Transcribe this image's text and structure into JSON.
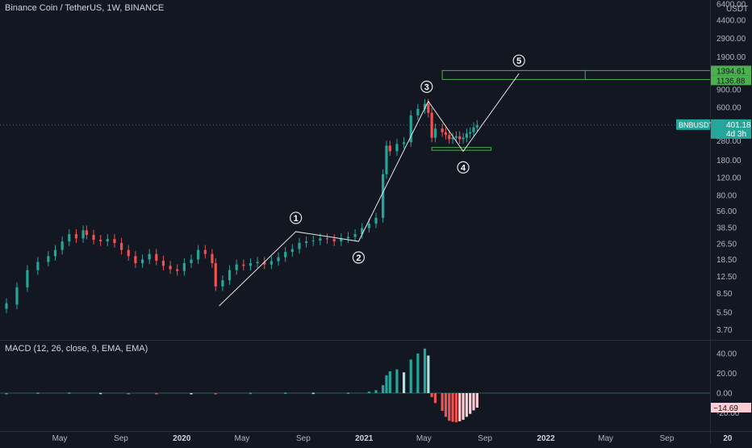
{
  "header": {
    "title": "Binance Coin / TetherUS, 1W, BINANCE",
    "currency": "USDT"
  },
  "macd_title": "MACD (12, 26, close, 9, EMA, EMA)",
  "colors": {
    "background": "#131722",
    "up": "#26a69a",
    "down": "#ef5350",
    "wave": "#e6e6e6",
    "target": "#4caf50",
    "hist_up_light": "#b2dfdb",
    "hist_down_light": "#ffcdd2"
  },
  "chart_data": [
    {
      "type": "candlestick",
      "symbol": "BNBUSDT",
      "log_scale": true,
      "y_ticks": [
        "6400.00",
        "4400.00",
        "2900.00",
        "1900.00",
        "900.00",
        "600.00",
        "280.00",
        "180.00",
        "120.00",
        "80.00",
        "56.00",
        "38.50",
        "26.50",
        "18.50",
        "12.50",
        "8.50",
        "5.50",
        "3.70"
      ],
      "x_ticks": [
        "May",
        "Sep",
        "2020",
        "May",
        "Sep",
        "2021",
        "May",
        "Sep",
        "2022",
        "May",
        "Sep",
        "20"
      ],
      "ylim": [
        3,
        7000
      ],
      "price_line": {
        "symbol": "BNBUSDT",
        "value": "401.18",
        "countdown": "4d 3h",
        "price": 401.18
      },
      "target_zone": {
        "labels": [
          "1394.61",
          "1136.88"
        ],
        "low": 1136.88,
        "high": 1394.61
      },
      "support_zone": {
        "low": 225,
        "high": 240
      },
      "wave_labels": [
        "1",
        "2",
        "3",
        "4",
        "5"
      ],
      "wave_points": [
        {
          "date": "2020-03-16",
          "price": 6.4
        },
        {
          "date": "2020-08-17",
          "price": 35
        },
        {
          "date": "2020-12-21",
          "price": 28
        },
        {
          "date": "2021-05-10",
          "price": 690
        },
        {
          "date": "2021-07-19",
          "price": 220
        },
        {
          "date": "2021-11-08",
          "price": 1300
        }
      ],
      "candles": [
        {
          "d": "2019-01-14",
          "o": 6.0,
          "c": 6.8
        },
        {
          "d": "2019-02-04",
          "o": 6.6,
          "c": 9.8
        },
        {
          "d": "2019-02-25",
          "o": 9.8,
          "c": 14.5
        },
        {
          "d": "2019-03-18",
          "o": 14.5,
          "c": 17.5
        },
        {
          "d": "2019-04-08",
          "o": 17.5,
          "c": 20.0
        },
        {
          "d": "2019-04-22",
          "o": 20.0,
          "c": 23.0
        },
        {
          "d": "2019-05-06",
          "o": 23.0,
          "c": 28.0
        },
        {
          "d": "2019-05-20",
          "o": 28.0,
          "c": 33.0
        },
        {
          "d": "2019-06-03",
          "o": 33.0,
          "c": 30.0
        },
        {
          "d": "2019-06-17",
          "o": 30.0,
          "c": 36.0
        },
        {
          "d": "2019-06-24",
          "o": 36.0,
          "c": 32.5
        },
        {
          "d": "2019-07-08",
          "o": 32.5,
          "c": 29.0
        },
        {
          "d": "2019-07-22",
          "o": 29.0,
          "c": 28.0
        },
        {
          "d": "2019-08-05",
          "o": 28.0,
          "c": 29.5
        },
        {
          "d": "2019-08-19",
          "o": 29.5,
          "c": 27.0
        },
        {
          "d": "2019-09-02",
          "o": 27.0,
          "c": 23.0
        },
        {
          "d": "2019-09-16",
          "o": 23.0,
          "c": 20.0
        },
        {
          "d": "2019-09-30",
          "o": 20.0,
          "c": 17.0
        },
        {
          "d": "2019-10-14",
          "o": 17.0,
          "c": 18.5
        },
        {
          "d": "2019-10-28",
          "o": 18.5,
          "c": 21.0
        },
        {
          "d": "2019-11-11",
          "o": 21.0,
          "c": 18.0
        },
        {
          "d": "2019-11-25",
          "o": 18.0,
          "c": 16.0
        },
        {
          "d": "2019-12-09",
          "o": 16.0,
          "c": 14.8
        },
        {
          "d": "2019-12-23",
          "o": 14.8,
          "c": 14.2
        },
        {
          "d": "2020-01-06",
          "o": 14.2,
          "c": 17.0
        },
        {
          "d": "2020-01-20",
          "o": 17.0,
          "c": 18.5
        },
        {
          "d": "2020-02-03",
          "o": 18.5,
          "c": 23.0
        },
        {
          "d": "2020-02-17",
          "o": 23.0,
          "c": 21.0
        },
        {
          "d": "2020-03-02",
          "o": 21.0,
          "c": 17.0
        },
        {
          "d": "2020-03-09",
          "o": 17.0,
          "c": 10.0
        },
        {
          "d": "2020-03-23",
          "o": 10.0,
          "c": 11.5
        },
        {
          "d": "2020-04-06",
          "o": 11.5,
          "c": 14.5
        },
        {
          "d": "2020-04-20",
          "o": 14.5,
          "c": 16.5
        },
        {
          "d": "2020-05-04",
          "o": 16.5,
          "c": 16.0
        },
        {
          "d": "2020-05-18",
          "o": 16.0,
          "c": 17.0
        },
        {
          "d": "2020-06-01",
          "o": 17.0,
          "c": 17.5
        },
        {
          "d": "2020-06-15",
          "o": 17.5,
          "c": 16.5
        },
        {
          "d": "2020-06-29",
          "o": 16.5,
          "c": 17.8
        },
        {
          "d": "2020-07-13",
          "o": 17.8,
          "c": 19.5
        },
        {
          "d": "2020-07-27",
          "o": 19.5,
          "c": 22.0
        },
        {
          "d": "2020-08-10",
          "o": 22.0,
          "c": 23.5
        },
        {
          "d": "2020-08-24",
          "o": 23.5,
          "c": 27.0
        },
        {
          "d": "2020-09-07",
          "o": 27.0,
          "c": 28.0
        },
        {
          "d": "2020-09-21",
          "o": 28.0,
          "c": 28.5
        },
        {
          "d": "2020-10-05",
          "o": 28.5,
          "c": 30.0
        },
        {
          "d": "2020-10-19",
          "o": 30.0,
          "c": 29.5
        },
        {
          "d": "2020-11-02",
          "o": 29.5,
          "c": 28.0
        },
        {
          "d": "2020-11-16",
          "o": 28.0,
          "c": 30.0
        },
        {
          "d": "2020-11-30",
          "o": 30.0,
          "c": 31.0
        },
        {
          "d": "2020-12-14",
          "o": 31.0,
          "c": 33.0
        },
        {
          "d": "2020-12-28",
          "o": 33.0,
          "c": 38.0
        },
        {
          "d": "2021-01-11",
          "o": 38.0,
          "c": 42.0
        },
        {
          "d": "2021-01-25",
          "o": 42.0,
          "c": 48.0
        },
        {
          "d": "2021-02-08",
          "o": 48.0,
          "c": 130.0
        },
        {
          "d": "2021-02-15",
          "o": 130.0,
          "c": 250.0
        },
        {
          "d": "2021-02-22",
          "o": 250.0,
          "c": 220.0
        },
        {
          "d": "2021-03-08",
          "o": 220.0,
          "c": 260.0
        },
        {
          "d": "2021-03-22",
          "o": 260.0,
          "c": 270.0
        },
        {
          "d": "2021-04-05",
          "o": 270.0,
          "c": 500.0
        },
        {
          "d": "2021-04-19",
          "o": 500.0,
          "c": 580.0
        },
        {
          "d": "2021-05-03",
          "o": 580.0,
          "c": 650.0
        },
        {
          "d": "2021-05-10",
          "o": 650.0,
          "c": 530.0
        },
        {
          "d": "2021-05-17",
          "o": 530.0,
          "c": 300.0
        },
        {
          "d": "2021-05-24",
          "o": 300.0,
          "c": 370.0
        },
        {
          "d": "2021-06-07",
          "o": 370.0,
          "c": 340.0
        },
        {
          "d": "2021-06-14",
          "o": 340.0,
          "c": 320.0
        },
        {
          "d": "2021-06-21",
          "o": 320.0,
          "c": 290.0
        },
        {
          "d": "2021-06-28",
          "o": 290.0,
          "c": 300.0
        },
        {
          "d": "2021-07-05",
          "o": 300.0,
          "c": 310.0
        },
        {
          "d": "2021-07-12",
          "o": 310.0,
          "c": 290.0
        },
        {
          "d": "2021-07-19",
          "o": 290.0,
          "c": 300.0
        },
        {
          "d": "2021-07-26",
          "o": 300.0,
          "c": 330.0
        },
        {
          "d": "2021-08-02",
          "o": 330.0,
          "c": 340.0
        },
        {
          "d": "2021-08-09",
          "o": 340.0,
          "c": 380.0
        },
        {
          "d": "2021-08-16",
          "o": 380.0,
          "c": 401.18
        }
      ]
    },
    {
      "type": "bar",
      "name": "MACD",
      "y_ticks": [
        "40.00",
        "20.00",
        "0.00",
        "-20.00"
      ],
      "ylim": [
        -30,
        45
      ],
      "last_value_label": "−14.69",
      "bars": [
        {
          "d": "2019-01-14",
          "v": 0.0
        },
        {
          "d": "2019-03-18",
          "v": 0.4
        },
        {
          "d": "2019-05-20",
          "v": 0.6
        },
        {
          "d": "2019-07-22",
          "v": 0.2
        },
        {
          "d": "2019-09-16",
          "v": -0.4
        },
        {
          "d": "2019-11-11",
          "v": -0.6
        },
        {
          "d": "2020-01-20",
          "v": -0.3
        },
        {
          "d": "2020-03-09",
          "v": -0.8
        },
        {
          "d": "2020-05-18",
          "v": 0.3
        },
        {
          "d": "2020-07-27",
          "v": 0.5
        },
        {
          "d": "2020-09-21",
          "v": 0.3
        },
        {
          "d": "2020-11-30",
          "v": 0.4
        },
        {
          "d": "2021-01-11",
          "v": 1.5
        },
        {
          "d": "2021-01-25",
          "v": 3.0
        },
        {
          "d": "2021-02-08",
          "v": 8.0
        },
        {
          "d": "2021-02-15",
          "v": 18.0
        },
        {
          "d": "2021-02-22",
          "v": 22.0
        },
        {
          "d": "2021-03-08",
          "v": 24.0
        },
        {
          "d": "2021-03-22",
          "v": 21.0
        },
        {
          "d": "2021-04-05",
          "v": 34.0
        },
        {
          "d": "2021-04-19",
          "v": 40.0
        },
        {
          "d": "2021-05-03",
          "v": 45.0
        },
        {
          "d": "2021-05-10",
          "v": 38.0
        },
        {
          "d": "2021-05-17",
          "v": -4.0
        },
        {
          "d": "2021-05-24",
          "v": -10.0
        },
        {
          "d": "2021-06-07",
          "v": -18.0
        },
        {
          "d": "2021-06-14",
          "v": -24.0
        },
        {
          "d": "2021-06-21",
          "v": -28.0
        },
        {
          "d": "2021-06-28",
          "v": -29.0
        },
        {
          "d": "2021-07-05",
          "v": -29.5
        },
        {
          "d": "2021-07-12",
          "v": -28.5
        },
        {
          "d": "2021-07-19",
          "v": -27.0
        },
        {
          "d": "2021-07-26",
          "v": -24.0
        },
        {
          "d": "2021-08-02",
          "v": -21.0
        },
        {
          "d": "2021-08-09",
          "v": -17.5
        },
        {
          "d": "2021-08-16",
          "v": -14.69
        }
      ]
    }
  ]
}
